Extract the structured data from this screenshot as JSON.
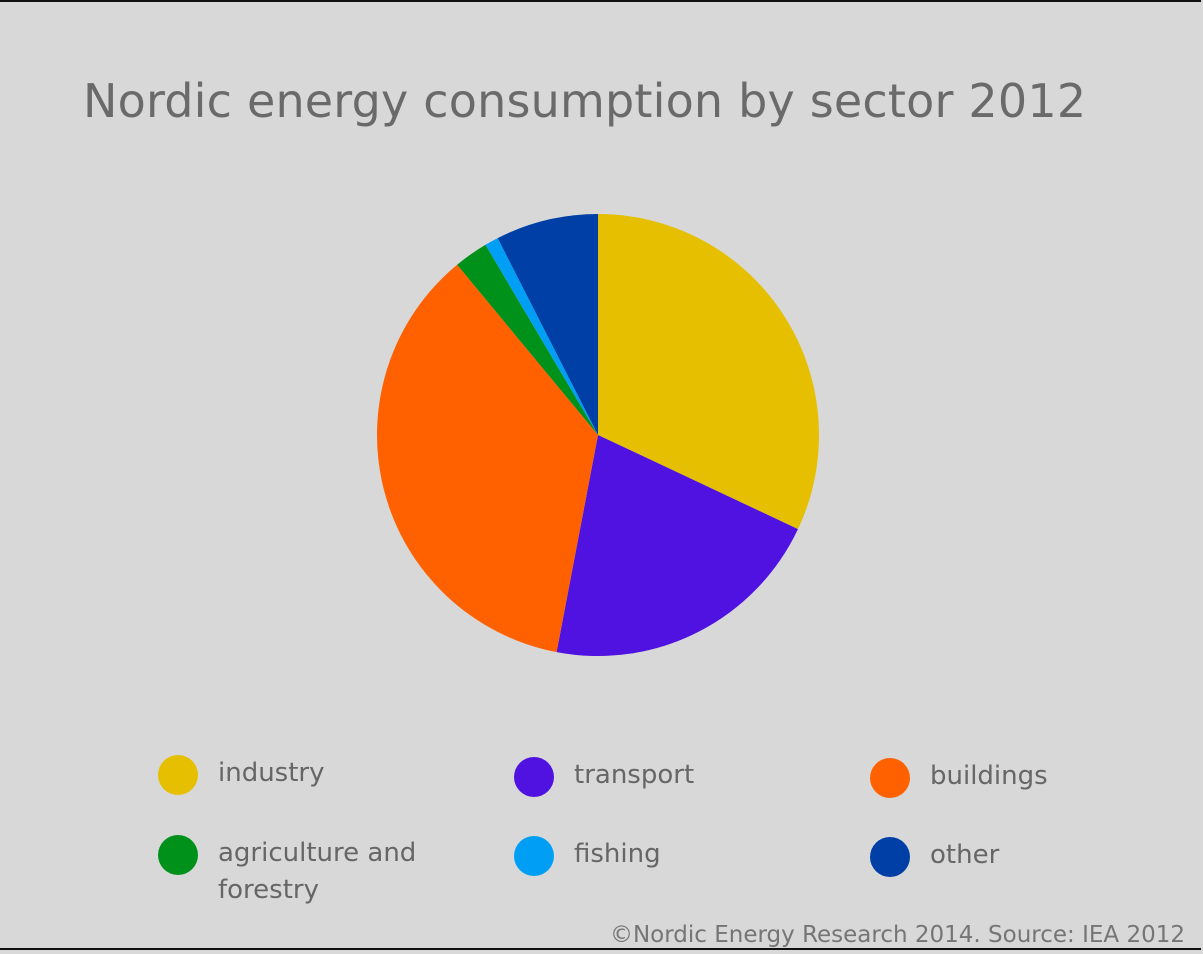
{
  "chart_data": {
    "type": "pie",
    "title": "Nordic energy consumption by sector 2012",
    "categories": [
      "industry",
      "transport",
      "buildings",
      "agriculture and forestry",
      "fishing",
      "other"
    ],
    "values": [
      32,
      21,
      36,
      2.5,
      1,
      7.5
    ],
    "unit": "%",
    "legend_position": "bottom",
    "colors": [
      "#e5bf00",
      "#4f12e0",
      "#ff6100",
      "#00911a",
      "#009ff5",
      "#0040a6"
    ]
  },
  "legend": {
    "items": [
      {
        "label": "industry",
        "color": "#e5bf00"
      },
      {
        "label": "transport",
        "color": "#4f12e0"
      },
      {
        "label": "buildings",
        "color": "#ff6100"
      },
      {
        "label": "agriculture and forestry",
        "color": "#00911a"
      },
      {
        "label": "fishing",
        "color": "#009ff5"
      },
      {
        "label": "other",
        "color": "#0040a6"
      }
    ]
  },
  "source": "©Nordic Energy Research 2014. Source: IEA 2012"
}
